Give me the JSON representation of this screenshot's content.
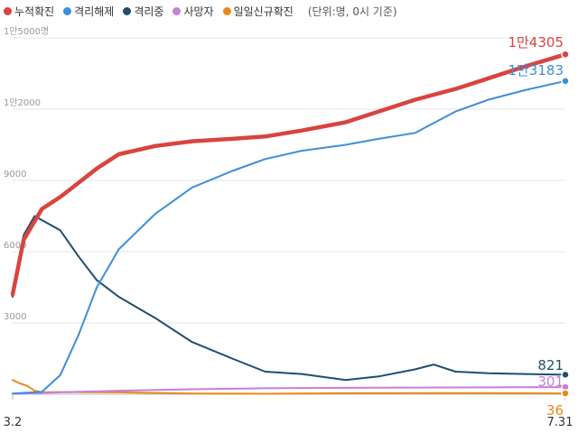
{
  "legend": {
    "items": [
      {
        "label": "누적확진",
        "color": "#d9443e"
      },
      {
        "label": "격리해제",
        "color": "#3b8fd9"
      },
      {
        "label": "격리중",
        "color": "#1f4e6e"
      },
      {
        "label": "사망자",
        "color": "#c77fd9"
      },
      {
        "label": "일일신규확진",
        "color": "#e88a1a"
      }
    ],
    "unit_note": "(단위:명, 0시 기준)"
  },
  "chart_data": {
    "type": "line",
    "x_start_label": "3.2",
    "x_end_label": "7.31",
    "x_start": "3.2",
    "x_end": "7.31",
    "xlabel": "",
    "ylabel": "",
    "ylim": [
      0,
      15000
    ],
    "y_ticks": [
      {
        "value": 3000,
        "label": "3000"
      },
      {
        "value": 6000,
        "label": "6000"
      },
      {
        "value": 9000,
        "label": "9000"
      },
      {
        "value": 12000,
        "label": "1만2000"
      },
      {
        "value": 15000,
        "label": "1만5000명"
      }
    ],
    "grid": true,
    "series": [
      {
        "name": "누적확진",
        "color": "#d9443e",
        "end_label": "1만4305",
        "x": [
          "3.2",
          "3.5",
          "3.10",
          "3.15",
          "3.20",
          "3.25",
          "3.31",
          "4.10",
          "4.20",
          "5.1",
          "5.10",
          "5.20",
          "6.1",
          "6.10",
          "6.20",
          "7.1",
          "7.10",
          "7.20",
          "7.31"
        ],
        "values": [
          4200,
          6500,
          7800,
          8300,
          8900,
          9500,
          10100,
          10450,
          10650,
          10750,
          10850,
          11100,
          11450,
          11900,
          12400,
          12850,
          13300,
          13800,
          14305
        ]
      },
      {
        "name": "격리해제",
        "color": "#3b8fd9",
        "end_label": "1만3183",
        "x": [
          "3.2",
          "3.10",
          "3.15",
          "3.20",
          "3.25",
          "3.31",
          "4.10",
          "4.20",
          "5.1",
          "5.10",
          "5.20",
          "6.1",
          "6.10",
          "6.20",
          "7.1",
          "7.10",
          "7.20",
          "7.31"
        ],
        "values": [
          30,
          100,
          800,
          2500,
          4500,
          6100,
          7600,
          8700,
          9400,
          9900,
          10250,
          10500,
          10750,
          11000,
          11900,
          12400,
          12800,
          13183
        ]
      },
      {
        "name": "격리중",
        "color": "#1f4e6e",
        "end_label": "821",
        "x": [
          "3.2",
          "3.5",
          "3.8",
          "3.15",
          "3.20",
          "3.25",
          "3.31",
          "4.10",
          "4.20",
          "5.1",
          "5.10",
          "5.20",
          "6.1",
          "6.10",
          "6.20",
          "6.25",
          "7.1",
          "7.10",
          "7.20",
          "7.31"
        ],
        "values": [
          4100,
          6700,
          7500,
          6900,
          5800,
          4800,
          4100,
          3200,
          2200,
          1500,
          950,
          850,
          600,
          750,
          1050,
          1250,
          950,
          880,
          850,
          821
        ]
      },
      {
        "name": "사망자",
        "color": "#c77fd9",
        "end_label": "301",
        "x": [
          "3.2",
          "3.15",
          "3.31",
          "4.20",
          "5.10",
          "6.1",
          "6.20",
          "7.10",
          "7.31"
        ],
        "values": [
          20,
          80,
          150,
          210,
          250,
          270,
          280,
          290,
          301
        ]
      },
      {
        "name": "일일신규확진",
        "color": "#e88a1a",
        "end_label": "36",
        "x": [
          "3.2",
          "3.4",
          "3.6",
          "3.8",
          "3.10",
          "3.15",
          "3.31",
          "4.20",
          "5.10",
          "6.1",
          "6.20",
          "7.10",
          "7.31"
        ],
        "values": [
          600,
          450,
          350,
          150,
          80,
          90,
          80,
          30,
          20,
          40,
          50,
          45,
          36
        ]
      }
    ]
  }
}
